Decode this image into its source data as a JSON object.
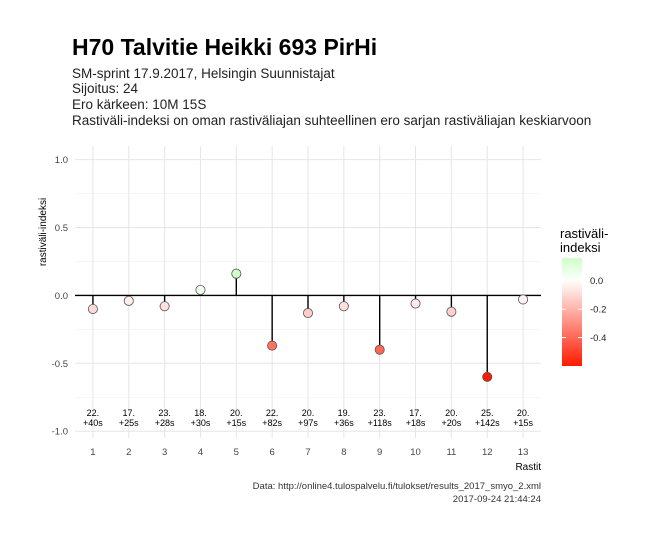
{
  "header": {
    "title": "H70 Talvitie Heikki 693 PirHi",
    "subtitle_lines": [
      "SM-sprint 17.9.2017, Helsingin Suunnistajat",
      "Sijoitus: 24",
      "Ero kärkeen: 10M 15S",
      "Rastiväli-indeksi on oman rastiväliajan suhteellinen ero sarjan rastiväliajan keskiarvoon"
    ]
  },
  "caption": {
    "source": "Data: http://online4.tulospalvelu.fi/tulokset/results_2017_smyo_2.xml",
    "timestamp": "2017-09-24 21:44:24"
  },
  "chart_data": {
    "type": "scatter",
    "xlabel": "Rastit",
    "ylabel": "rastiväli-indeksi",
    "ylim": [
      -1.05,
      1.1
    ],
    "y_ticks": [
      "-1.0",
      "-0.5",
      "0.0",
      "0.5",
      "1.0"
    ],
    "y_tick_values": [
      -1.0,
      -0.5,
      0.0,
      0.5,
      1.0
    ],
    "x": [
      1,
      2,
      3,
      4,
      5,
      6,
      7,
      8,
      9,
      10,
      11,
      12,
      13
    ],
    "values": [
      -0.1,
      -0.04,
      -0.08,
      0.04,
      0.16,
      -0.37,
      -0.13,
      -0.08,
      -0.4,
      -0.06,
      -0.12,
      -0.6,
      -0.03
    ],
    "ranks": [
      "22.",
      "17.",
      "23.",
      "18.",
      "20.",
      "22.",
      "20.",
      "19.",
      "23.",
      "17.",
      "20.",
      "25.",
      "20."
    ],
    "split_diffs": [
      "+40s",
      "+25s",
      "+28s",
      "+30s",
      "+15s",
      "+82s",
      "+97s",
      "+36s",
      "+118s",
      "+18s",
      "+20s",
      "+142s",
      "+15s"
    ],
    "grid": true,
    "legend": {
      "title_lines": [
        "rastiväli-",
        "indeksi"
      ],
      "ticks": [
        "0.0",
        "-0.2",
        "-0.4"
      ],
      "tick_values": [
        0.0,
        -0.2,
        -0.4
      ],
      "range": [
        -0.6,
        0.16
      ],
      "placement": "right"
    },
    "colors": {
      "high": "#cfffc8",
      "mid": "#ffffff",
      "low": "#ff1a00",
      "line": "#000000",
      "grid": "#e6e6e6"
    }
  }
}
